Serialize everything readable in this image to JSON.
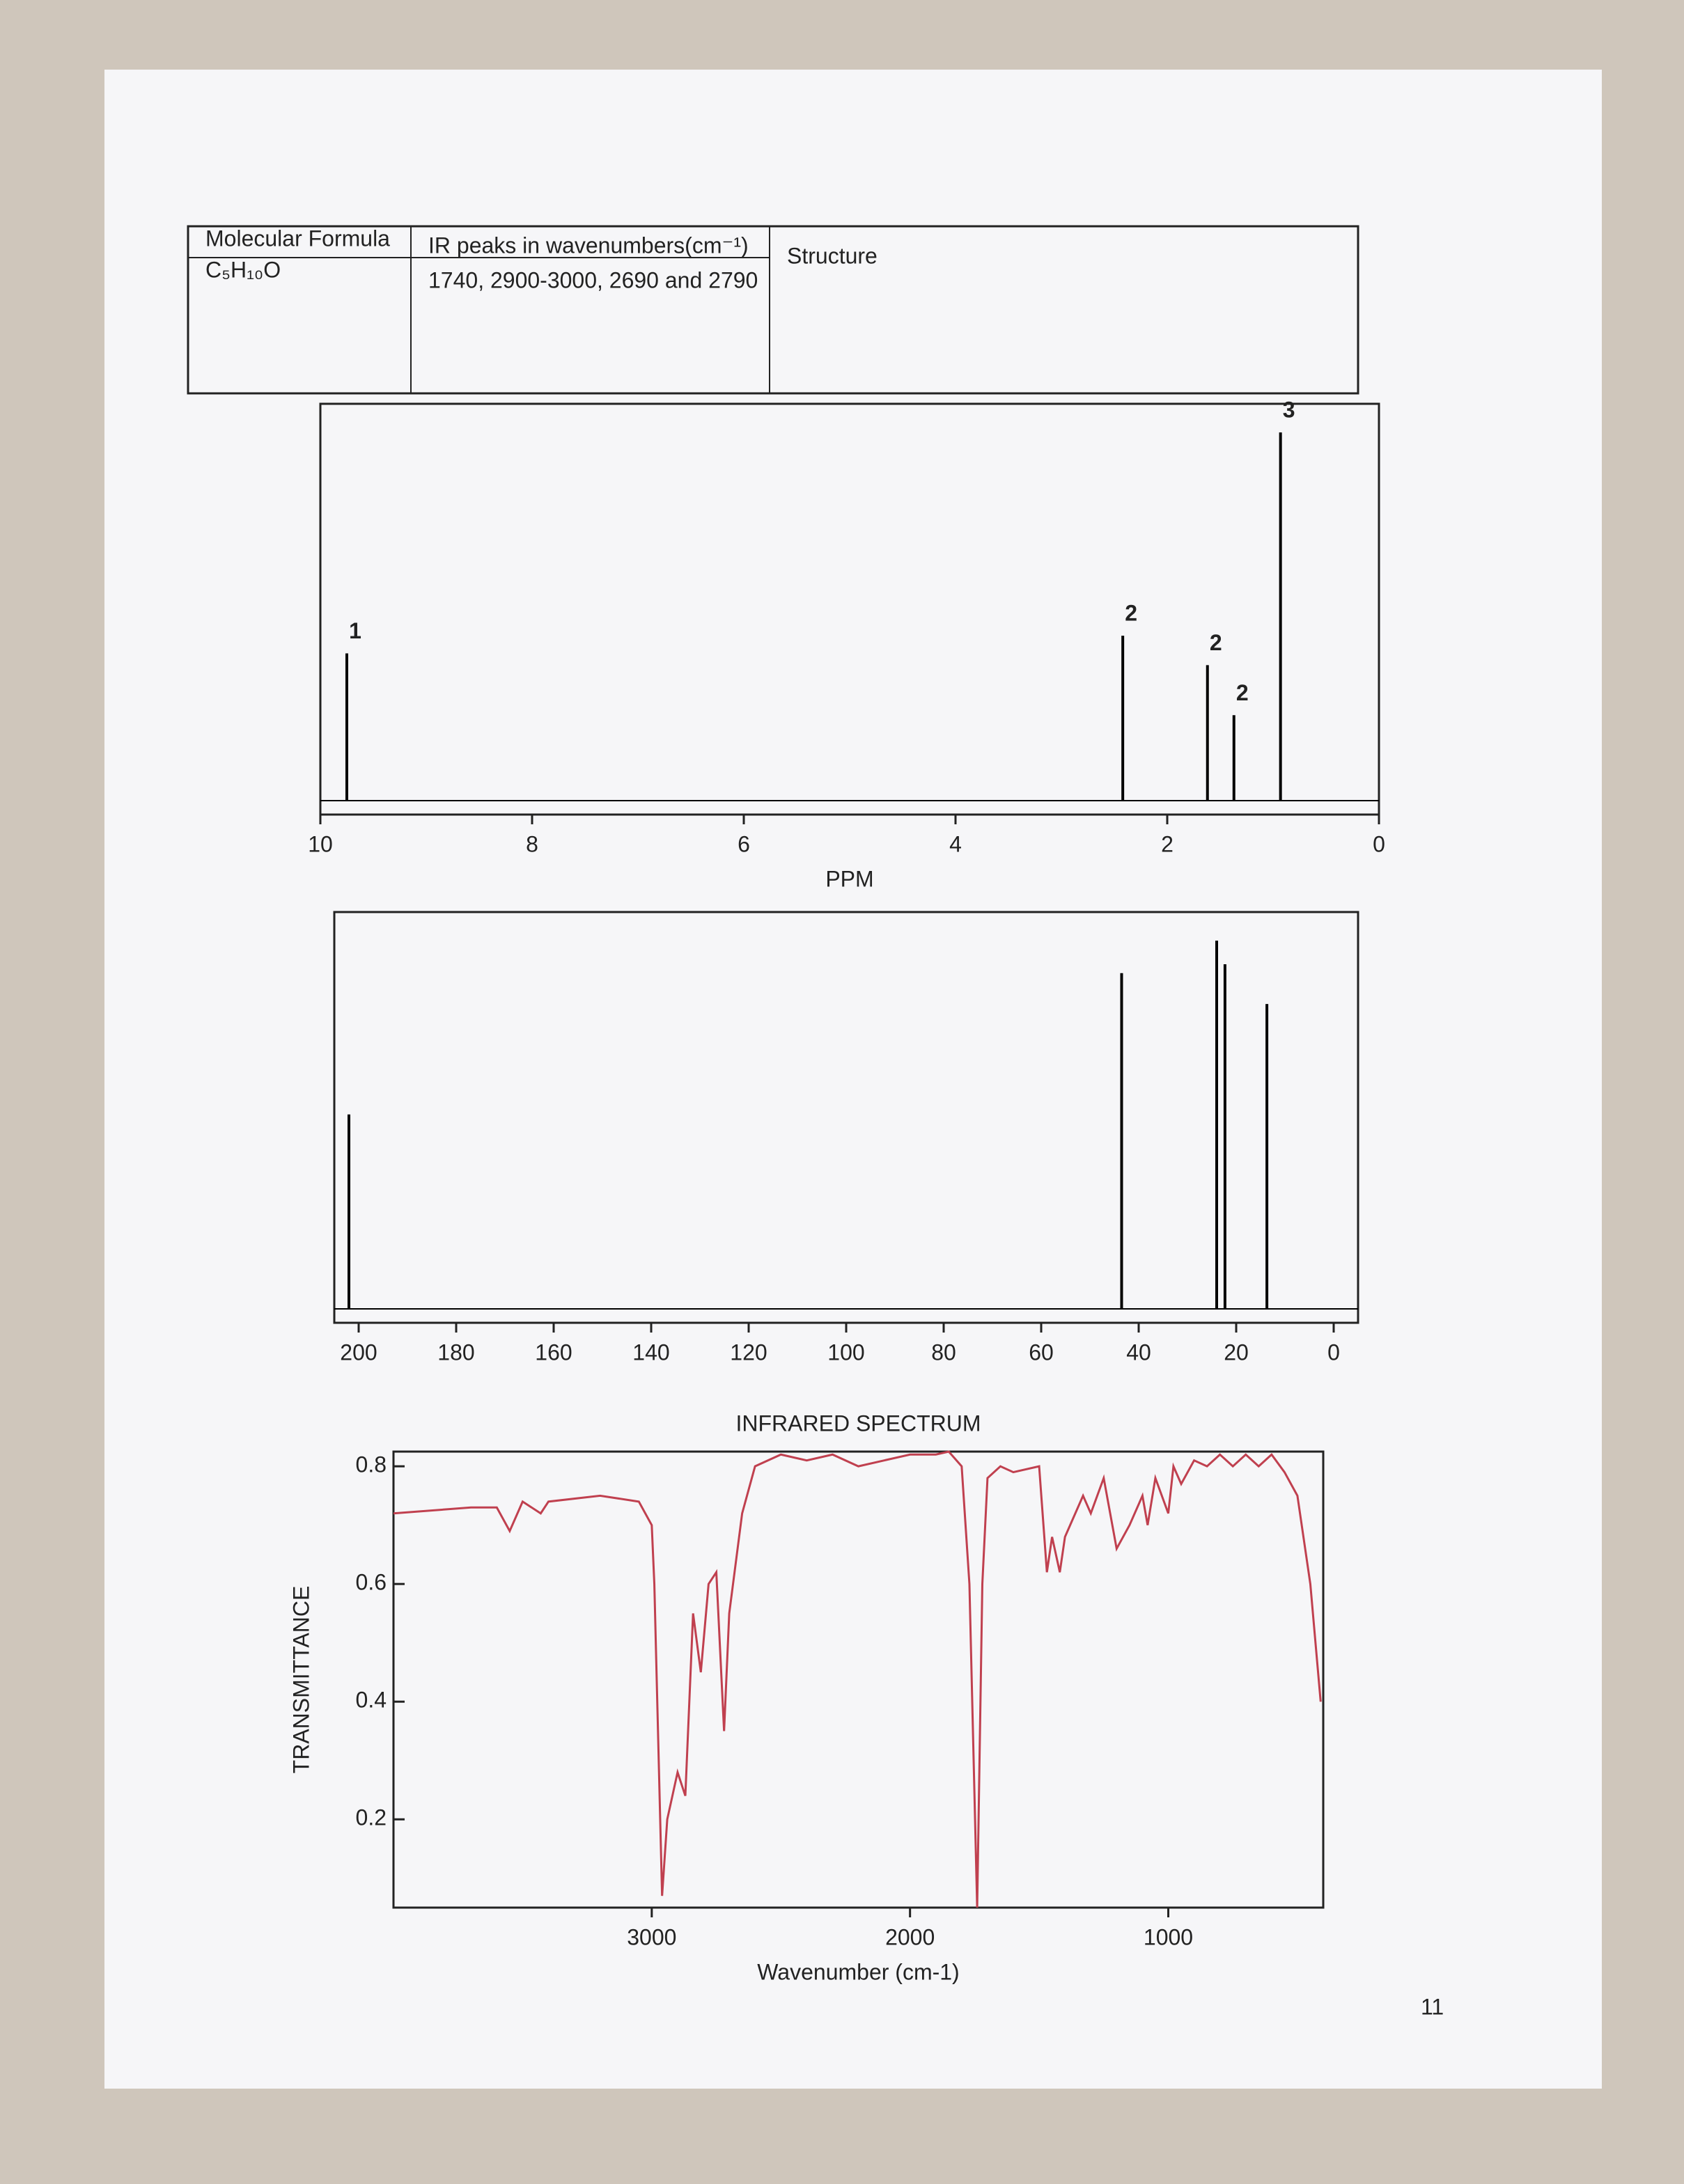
{
  "table": {
    "headers": [
      "Molecular Formula",
      "IR peaks in wavenumbers(cm⁻¹)",
      "Structure"
    ],
    "rows": [
      [
        "C₅H₁₀O",
        "1740, 2900-3000, 2690 and 2790"
      ]
    ]
  },
  "page_number": "11",
  "chart_data": [
    {
      "type": "stick",
      "xlabel": "PPM",
      "x": [
        9.75,
        2.42,
        1.62,
        1.37,
        0.93
      ],
      "values": [
        100,
        112,
        92,
        58,
        250
      ],
      "integrations": [
        1,
        2,
        2,
        2,
        3
      ],
      "xlim": [
        10,
        0
      ],
      "xticks": [
        10,
        8,
        6,
        4,
        2,
        0
      ],
      "ylim": [
        0,
        260
      ],
      "color": "#000000"
    },
    {
      "type": "stick",
      "x": [
        202,
        43.5,
        24,
        22.3,
        13.7
      ],
      "values": [
        132,
        228,
        250,
        234,
        207
      ],
      "xlim": [
        205,
        -5
      ],
      "xticks": [
        200,
        180,
        160,
        140,
        120,
        100,
        80,
        60,
        40,
        20,
        0
      ],
      "ylim": [
        0,
        260
      ],
      "color": "#000000"
    },
    {
      "type": "line",
      "title": "INFRARED SPECTRUM",
      "xlabel": "Wavenumber (cm-1)",
      "ylabel": "TRANSMITTANCE",
      "x": [
        4000,
        3700,
        3600,
        3550,
        3500,
        3430,
        3400,
        3200,
        3050,
        3000,
        2990,
        2960,
        2940,
        2900,
        2870,
        2840,
        2810,
        2780,
        2750,
        2720,
        2700,
        2650,
        2600,
        2500,
        2400,
        2300,
        2200,
        2100,
        2000,
        1900,
        1850,
        1800,
        1770,
        1740,
        1720,
        1700,
        1650,
        1600,
        1500,
        1470,
        1450,
        1420,
        1400,
        1380,
        1330,
        1300,
        1250,
        1200,
        1150,
        1100,
        1080,
        1050,
        1000,
        980,
        950,
        900,
        850,
        800,
        750,
        700,
        650,
        600,
        550,
        500,
        450,
        410
      ],
      "values": [
        0.72,
        0.73,
        0.73,
        0.69,
        0.74,
        0.72,
        0.74,
        0.75,
        0.74,
        0.7,
        0.6,
        0.07,
        0.2,
        0.28,
        0.24,
        0.55,
        0.45,
        0.6,
        0.62,
        0.35,
        0.55,
        0.72,
        0.8,
        0.82,
        0.81,
        0.82,
        0.8,
        0.81,
        0.82,
        0.82,
        0.825,
        0.8,
        0.6,
        0.05,
        0.6,
        0.78,
        0.8,
        0.79,
        0.8,
        0.62,
        0.68,
        0.62,
        0.68,
        0.7,
        0.75,
        0.72,
        0.78,
        0.66,
        0.7,
        0.75,
        0.7,
        0.78,
        0.72,
        0.8,
        0.77,
        0.81,
        0.8,
        0.82,
        0.8,
        0.82,
        0.8,
        0.82,
        0.79,
        0.75,
        0.6,
        0.4
      ],
      "xlim": [
        4000,
        400
      ],
      "ylim": [
        0.05,
        0.825
      ],
      "xticks": [
        3000,
        2000,
        1000
      ],
      "yticks": [
        0.2,
        0.4,
        0.6,
        0.8
      ],
      "color": "#c0404f"
    }
  ]
}
